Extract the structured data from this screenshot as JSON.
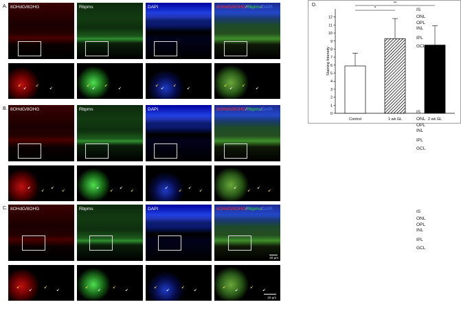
{
  "panels": [
    {
      "letter": "A.",
      "top": 4
    },
    {
      "letter": "B.",
      "top": 153
    },
    {
      "letter": "C.",
      "top": 298
    }
  ],
  "channels": {
    "col1": "8OHdG/8OHG",
    "col2": "Rbpms",
    "col3": "DAPI",
    "merge": {
      "a": "8OHdG/8OHG",
      "sep1": "/",
      "b": "Rbpms",
      "sep2": "/",
      "c": "DAPI"
    }
  },
  "layers": [
    "IS",
    "ONL",
    "OPL",
    "INL",
    "IPL",
    "GCL"
  ],
  "scale_bars": {
    "top": "20 µm",
    "zoom": "20 µm"
  },
  "colors": {
    "red": "#c81414",
    "green": "#2ea82e",
    "blue": "#1f3fe0",
    "merge": "#3a6f2a"
  },
  "chart_data": {
    "type": "bar",
    "panel_letter": "D.",
    "categories": [
      "Control",
      "1 wk GL",
      "2 wk GL"
    ],
    "values": [
      5.9,
      9.3,
      8.5
    ],
    "errors": [
      1.6,
      2.5,
      2.4
    ],
    "fills": [
      "white",
      "hatched",
      "black"
    ],
    "ylabel": "Staining Intensity",
    "ylim": [
      0,
      13
    ],
    "yticks": [
      0,
      1,
      2,
      3,
      4,
      5,
      6,
      7,
      8,
      9,
      10,
      11,
      12
    ],
    "significance": [
      {
        "from": "Control",
        "to": "1 wk GL",
        "label": "*"
      },
      {
        "from": "Control",
        "to": "2 wk GL",
        "label": "**"
      }
    ],
    "grid": false
  }
}
